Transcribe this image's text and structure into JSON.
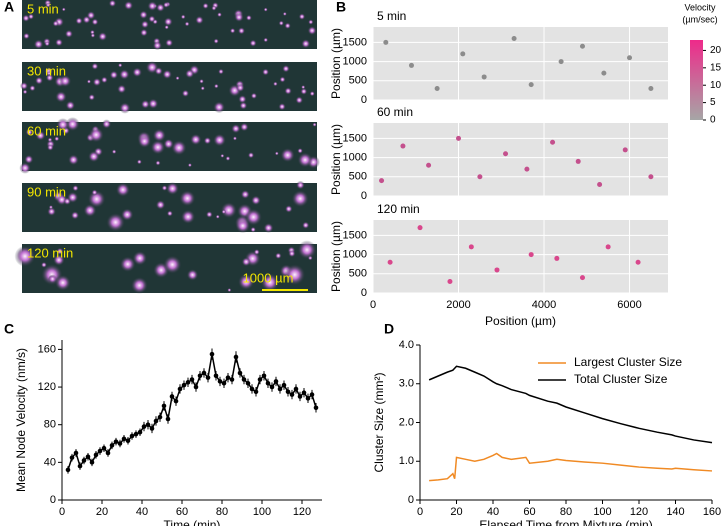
{
  "panel_labels": [
    "A",
    "B",
    "C",
    "D"
  ],
  "panel_a": {
    "frames": [
      "5 min",
      "30 min",
      "60 min",
      "90 min",
      "120 min"
    ],
    "scale_bar": "1000 µm"
  },
  "colorbar": {
    "title": "Velocity",
    "unit": "(µm/sec)",
    "lim": [
      0,
      23
    ],
    "ticks": [
      0,
      5,
      10,
      15,
      20
    ],
    "colors": [
      "#a6a6a6",
      "#ee2a8a"
    ]
  },
  "chart_data": [
    {
      "type": "scatter",
      "title": "5 min",
      "ylabel": "Position (µm)",
      "x": [
        300,
        900,
        1500,
        2100,
        2600,
        3300,
        3700,
        4400,
        4900,
        5400,
        6000,
        6500
      ],
      "values": [
        1500,
        900,
        300,
        1200,
        600,
        1600,
        400,
        1000,
        1400,
        700,
        1100,
        300
      ],
      "color": "#8c8c8c",
      "xlim": [
        0,
        6900
      ],
      "ylim": [
        0,
        1900
      ],
      "xticks": [
        0,
        2000,
        4000,
        6000
      ],
      "yticks": [
        0,
        500,
        1000,
        1500
      ],
      "show_xtick_labels": false
    },
    {
      "type": "scatter",
      "title": "60 min",
      "ylabel": "Position (µm)",
      "x": [
        200,
        700,
        1300,
        2000,
        2500,
        3100,
        3600,
        4200,
        4800,
        5300,
        5900,
        6500
      ],
      "values": [
        400,
        1300,
        800,
        1500,
        500,
        1100,
        700,
        1400,
        900,
        300,
        1200,
        500
      ],
      "color": "#c4508d",
      "xlim": [
        0,
        6900
      ],
      "ylim": [
        0,
        1900
      ],
      "xticks": [
        0,
        2000,
        4000,
        6000
      ],
      "yticks": [
        0,
        500,
        1000,
        1500
      ],
      "show_xtick_labels": false
    },
    {
      "type": "scatter",
      "title": "120 min",
      "ylabel": "Position (µm)",
      "xlabel": "Position (µm)",
      "x": [
        400,
        1100,
        1800,
        2300,
        2900,
        3700,
        4300,
        4900,
        5500,
        6200
      ],
      "values": [
        800,
        1700,
        300,
        1200,
        600,
        1000,
        900,
        400,
        1200,
        800
      ],
      "color": "#d9478c",
      "xlim": [
        0,
        6900
      ],
      "ylim": [
        0,
        1900
      ],
      "xticks": [
        0,
        2000,
        4000,
        6000
      ],
      "yticks": [
        0,
        500,
        1000,
        1500
      ],
      "show_xtick_labels": true
    },
    {
      "type": "line",
      "xlabel": "Time (min)",
      "ylabel": "Mean Node Velocity (nm/s)",
      "color": "#000000",
      "x": [
        3,
        5,
        7,
        9,
        11,
        13,
        15,
        17,
        19,
        21,
        23,
        25,
        27,
        29,
        31,
        33,
        35,
        37,
        39,
        41,
        43,
        45,
        47,
        49,
        51,
        53,
        55,
        57,
        59,
        61,
        63,
        65,
        67,
        69,
        71,
        73,
        75,
        77,
        79,
        81,
        83,
        85,
        87,
        89,
        91,
        93,
        95,
        97,
        99,
        101,
        103,
        105,
        107,
        109,
        111,
        113,
        115,
        117,
        119,
        121,
        123,
        125,
        127
      ],
      "values": [
        32,
        45,
        50,
        36,
        42,
        46,
        40,
        48,
        52,
        55,
        50,
        58,
        62,
        60,
        65,
        63,
        68,
        70,
        72,
        78,
        80,
        76,
        84,
        88,
        100,
        86,
        110,
        105,
        118,
        122,
        125,
        128,
        120,
        132,
        135,
        130,
        155,
        132,
        126,
        124,
        130,
        128,
        152,
        135,
        128,
        124,
        118,
        115,
        128,
        132,
        124,
        120,
        126,
        118,
        122,
        115,
        112,
        118,
        110,
        114,
        108,
        112,
        98
      ],
      "errors": [
        4,
        4,
        4,
        4,
        4,
        4,
        4,
        4,
        4,
        4,
        4,
        4,
        4,
        4,
        4,
        4,
        4,
        4,
        4,
        5,
        5,
        5,
        5,
        5,
        5,
        5,
        5,
        5,
        5,
        5,
        5,
        5,
        5,
        5,
        5,
        5,
        6,
        5,
        5,
        5,
        5,
        5,
        6,
        5,
        5,
        5,
        5,
        5,
        5,
        5,
        5,
        5,
        5,
        5,
        5,
        5,
        5,
        5,
        5,
        5,
        5,
        5,
        5
      ],
      "xlim": [
        0,
        130
      ],
      "ylim": [
        0,
        170
      ],
      "xticks": [
        0,
        20,
        40,
        60,
        80,
        100,
        120
      ],
      "yticks": [
        0,
        40,
        80,
        120,
        160
      ]
    },
    {
      "type": "line",
      "xlabel": "Elapsed Time from Mixture (min)",
      "ylabel": "Cluster Size (mm²)",
      "x": [
        5,
        10,
        15,
        18,
        19,
        20,
        25,
        30,
        35,
        40,
        42,
        45,
        50,
        58,
        60,
        70,
        75,
        80,
        90,
        100,
        110,
        120,
        130,
        138,
        140,
        150,
        160
      ],
      "series": [
        {
          "name": "Largest Cluster Size",
          "color": "#f08a24",
          "values": [
            0.5,
            0.52,
            0.55,
            0.68,
            0.55,
            1.1,
            1.05,
            1.0,
            1.05,
            1.15,
            1.2,
            1.1,
            1.05,
            1.1,
            0.95,
            1.0,
            1.05,
            1.02,
            0.98,
            0.95,
            0.9,
            0.85,
            0.82,
            0.8,
            0.82,
            0.78,
            0.75
          ]
        },
        {
          "name": "Total Cluster Size",
          "color": "#000000",
          "values": [
            3.1,
            3.2,
            3.3,
            3.35,
            3.4,
            3.45,
            3.4,
            3.3,
            3.2,
            3.05,
            3.0,
            2.95,
            2.85,
            2.75,
            2.7,
            2.55,
            2.5,
            2.4,
            2.25,
            2.1,
            1.97,
            1.85,
            1.75,
            1.68,
            1.65,
            1.55,
            1.48
          ]
        }
      ],
      "xlim": [
        0,
        160
      ],
      "ylim": [
        0,
        4
      ],
      "xticks": [
        0,
        20,
        40,
        60,
        80,
        100,
        120,
        140,
        160
      ],
      "yticks": [
        0,
        {
          "value": 1,
          "label": "1.0"
        },
        {
          "value": 2,
          "label": "2.0"
        },
        {
          "value": 3,
          "label": "3.0"
        },
        {
          "value": 4,
          "label": "4.0"
        }
      ]
    }
  ]
}
